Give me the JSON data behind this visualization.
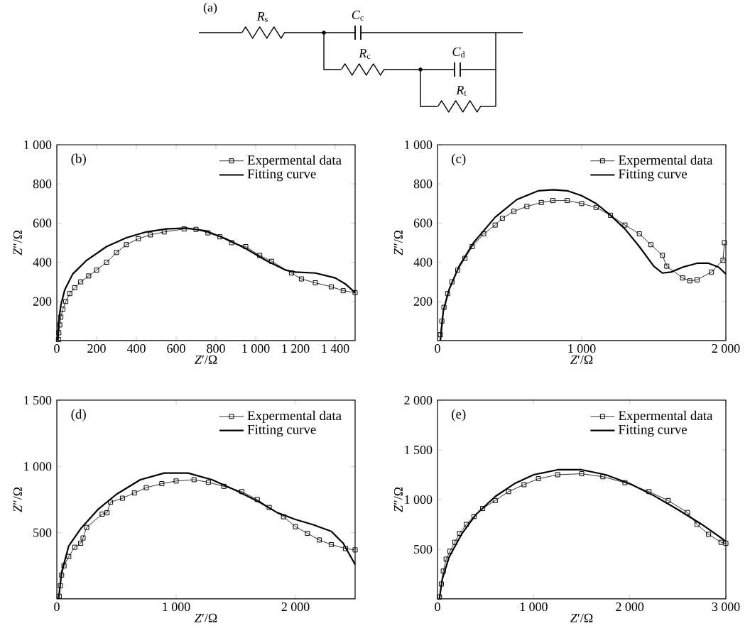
{
  "chart_data": [
    {
      "type": "other",
      "annotations": [
        "(a)",
        "*R*$_{s}$",
        "*C*$_{c}$",
        "*R*$_{c}$",
        "*C*$_{d}$",
        "*R*$_{t}$"
      ]
    },
    {
      "type": "line",
      "annotations": [
        "(b)"
      ],
      "xlabel": "*Z*′/Ω",
      "ylabel": "*Z*″/Ω",
      "legend": "top right",
      "xlim": [
        0,
        1500
      ],
      "ylim": [
        0,
        1000
      ],
      "xticks": [
        0,
        200,
        400,
        600,
        800,
        {
          "value": 1000,
          "label": "1 000"
        },
        {
          "value": 1200,
          "label": "1 200"
        },
        {
          "value": 1400,
          "label": "1 400"
        }
      ],
      "yticks": [
        200,
        400,
        600,
        800,
        {
          "value": 1000,
          "label": "1 000"
        }
      ],
      "series": [
        {
          "name": "Expermental data",
          "color": "#000000",
          "marker": "square",
          "x": [
            8,
            10,
            15,
            20,
            30,
            45,
            65,
            90,
            120,
            160,
            200,
            250,
            300,
            350,
            410,
            470,
            540,
            640,
            700,
            760,
            820,
            880,
            950,
            1020,
            1080,
            1180,
            1230,
            1300,
            1380,
            1440,
            1500
          ],
          "values": [
            5,
            40,
            80,
            120,
            160,
            200,
            240,
            270,
            300,
            330,
            360,
            400,
            450,
            490,
            520,
            540,
            555,
            570,
            568,
            550,
            530,
            500,
            480,
            435,
            405,
            345,
            315,
            295,
            275,
            255,
            245
          ]
        },
        {
          "name": "Fitting curve",
          "color": "#000000",
          "marker": "none",
          "x": [
            5,
            10,
            20,
            40,
            80,
            150,
            250,
            350,
            450,
            550,
            650,
            750,
            850,
            950,
            1050,
            1150,
            1200,
            1300,
            1400,
            1450,
            1500
          ],
          "values": [
            0,
            100,
            180,
            260,
            340,
            410,
            480,
            525,
            555,
            570,
            575,
            560,
            520,
            470,
            410,
            360,
            350,
            345,
            320,
            290,
            245
          ]
        }
      ]
    },
    {
      "type": "line",
      "annotations": [
        "(c)"
      ],
      "xlabel": "*Z*′/Ω",
      "ylabel": "*Z*″/Ω",
      "legend": "top right",
      "xlim": [
        0,
        2000
      ],
      "ylim": [
        0,
        1000
      ],
      "xticks": [
        0,
        {
          "value": 1000,
          "label": "1 000"
        },
        {
          "value": 2000,
          "label": "2 000"
        }
      ],
      "yticks": [
        200,
        400,
        600,
        800,
        {
          "value": 1000,
          "label": "1 000"
        }
      ],
      "series": [
        {
          "name": "Expermental data",
          "color": "#000000",
          "marker": "square",
          "x": [
            20,
            30,
            45,
            70,
            100,
            140,
            190,
            240,
            320,
            400,
            450,
            530,
            620,
            720,
            800,
            900,
            1000,
            1100,
            1200,
            1300,
            1400,
            1480,
            1560,
            1590,
            1700,
            1750,
            1800,
            1900,
            1980,
            1990
          ],
          "values": [
            30,
            100,
            170,
            240,
            300,
            360,
            420,
            480,
            545,
            590,
            625,
            660,
            685,
            705,
            715,
            715,
            700,
            680,
            640,
            590,
            545,
            490,
            435,
            380,
            320,
            305,
            310,
            350,
            410,
            500
          ]
        },
        {
          "name": "Fitting curve",
          "color": "#000000",
          "marker": "none",
          "x": [
            20,
            40,
            80,
            150,
            250,
            400,
            550,
            700,
            800,
            900,
            1000,
            1100,
            1200,
            1300,
            1400,
            1500,
            1560,
            1620,
            1700,
            1800,
            1880,
            1950,
            2000
          ],
          "values": [
            0,
            150,
            260,
            380,
            500,
            630,
            720,
            765,
            770,
            765,
            740,
            700,
            640,
            570,
            480,
            380,
            345,
            350,
            375,
            395,
            395,
            375,
            340
          ]
        }
      ]
    },
    {
      "type": "line",
      "annotations": [
        "(d)"
      ],
      "xlabel": "*Z*′/Ω",
      "ylabel": "*Z*″/Ω",
      "legend": "top right",
      "xlim": [
        0,
        2500
      ],
      "ylim": [
        0,
        1500
      ],
      "xticks": [
        0,
        {
          "value": 1000,
          "label": "1 000"
        },
        {
          "value": 2000,
          "label": "2 000"
        }
      ],
      "yticks": [
        500,
        {
          "value": 1000,
          "label": "1 000"
        },
        {
          "value": 1500,
          "label": "1 500"
        }
      ],
      "series": [
        {
          "name": "Expermental data",
          "color": "#000000",
          "marker": "square",
          "x": [
            20,
            30,
            40,
            60,
            100,
            150,
            200,
            220,
            250,
            380,
            420,
            450,
            550,
            650,
            750,
            880,
            1000,
            1150,
            1270,
            1400,
            1550,
            1680,
            1780,
            1900,
            2000,
            2100,
            2200,
            2300,
            2420,
            2500
          ],
          "values": [
            20,
            100,
            180,
            250,
            320,
            390,
            420,
            460,
            540,
            640,
            650,
            730,
            760,
            800,
            840,
            870,
            890,
            900,
            880,
            850,
            810,
            750,
            690,
            620,
            545,
            495,
            445,
            410,
            380,
            370
          ]
        },
        {
          "name": "Fitting curve",
          "color": "#000000",
          "marker": "none",
          "x": [
            15,
            40,
            100,
            200,
            350,
            500,
            700,
            900,
            1100,
            1300,
            1500,
            1700,
            1850,
            2000,
            2150,
            2300,
            2400,
            2500
          ],
          "values": [
            0,
            200,
            400,
            530,
            680,
            790,
            900,
            950,
            950,
            900,
            820,
            730,
            650,
            600,
            560,
            510,
            420,
            260
          ]
        }
      ]
    },
    {
      "type": "line",
      "annotations": [
        "(e)"
      ],
      "xlabel": "*Z*′/Ω",
      "ylabel": "*Z*″/Ω",
      "legend": "top right",
      "xlim": [
        0,
        3000
      ],
      "ylim": [
        0,
        2000
      ],
      "xticks": [
        0,
        {
          "value": 1000,
          "label": "1 000"
        },
        {
          "value": 2000,
          "label": "2 000"
        },
        {
          "value": 3000,
          "label": "3 000"
        }
      ],
      "yticks": [
        500,
        {
          "value": 1000,
          "label": "1 000"
        },
        {
          "value": 1500,
          "label": "1 500"
        },
        {
          "value": 2000,
          "label": "2 000"
        }
      ],
      "series": [
        {
          "name": "Expermental data",
          "color": "#000000",
          "marker": "square",
          "x": [
            20,
            40,
            60,
            90,
            130,
            180,
            230,
            300,
            380,
            470,
            600,
            740,
            900,
            1050,
            1250,
            1500,
            1720,
            1950,
            2200,
            2400,
            2600,
            2700,
            2820,
            2950,
            3000
          ],
          "values": [
            20,
            150,
            280,
            400,
            480,
            570,
            660,
            750,
            830,
            910,
            990,
            1080,
            1150,
            1210,
            1250,
            1260,
            1230,
            1170,
            1080,
            990,
            870,
            750,
            650,
            570,
            560
          ]
        },
        {
          "name": "Fitting curve",
          "color": "#000000",
          "marker": "none",
          "x": [
            20,
            50,
            120,
            250,
            400,
            600,
            800,
            1000,
            1250,
            1500,
            1750,
            2000,
            2250,
            2500,
            2750,
            3000
          ],
          "values": [
            0,
            200,
            420,
            650,
            850,
            1030,
            1160,
            1250,
            1300,
            1300,
            1250,
            1160,
            1040,
            900,
            750,
            580
          ]
        }
      ]
    }
  ]
}
